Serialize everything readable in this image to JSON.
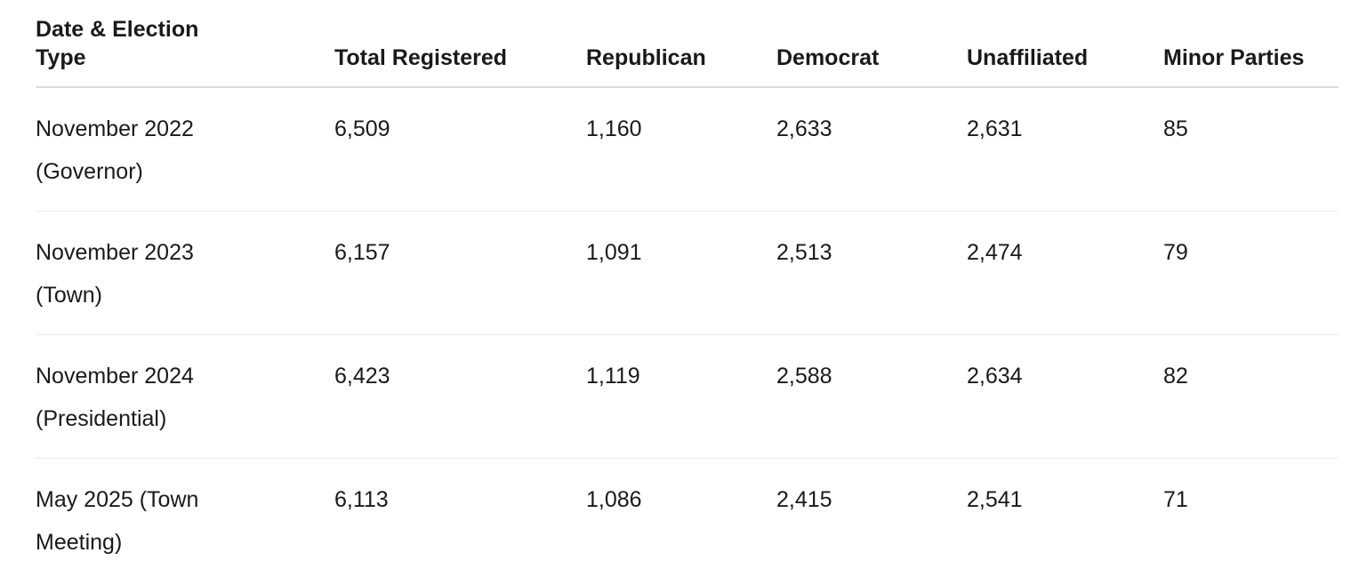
{
  "table": {
    "columns": [
      "Date & Election Type",
      "Total Registered",
      "Republican",
      "Democrat",
      "Unaffiliated",
      "Minor Parties"
    ],
    "rows": [
      [
        "November 2022 (Governor)",
        "6,509",
        "1,160",
        "2,633",
        "2,631",
        "85"
      ],
      [
        "November 2023 (Town)",
        "6,157",
        "1,091",
        "2,513",
        "2,474",
        "79"
      ],
      [
        "November 2024 (Presidential)",
        "6,423",
        "1,119",
        "2,588",
        "2,634",
        "82"
      ],
      [
        "May 2025 (Town Meeting)",
        "6,113",
        "1,086",
        "2,415",
        "2,541",
        "71"
      ]
    ]
  }
}
